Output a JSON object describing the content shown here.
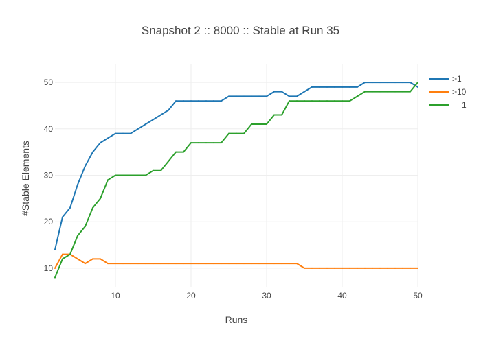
{
  "chart_data": {
    "type": "line",
    "title": "Snapshot 2 :: 8000 :: Stable at Run 35",
    "xlabel": "Runs",
    "ylabel": "#Stable Elements",
    "xlim": [
      2,
      50
    ],
    "ylim": [
      6,
      54
    ],
    "x_ticks": [
      10,
      20,
      30,
      40,
      50
    ],
    "y_ticks": [
      10,
      20,
      30,
      40,
      50
    ],
    "grid": true,
    "legend_position": "top-right",
    "x": [
      2,
      3,
      4,
      5,
      6,
      7,
      8,
      9,
      10,
      11,
      12,
      13,
      14,
      15,
      16,
      17,
      18,
      19,
      20,
      21,
      22,
      23,
      24,
      25,
      26,
      27,
      28,
      29,
      30,
      31,
      32,
      33,
      34,
      35,
      36,
      37,
      38,
      39,
      40,
      41,
      42,
      43,
      44,
      45,
      46,
      47,
      48,
      49,
      50
    ],
    "series": [
      {
        "name": ">1",
        "color": "#1f77b4",
        "values": [
          14,
          21,
          23,
          28,
          32,
          35,
          37,
          38,
          39,
          39,
          39,
          40,
          41,
          42,
          43,
          44,
          46,
          46,
          46,
          46,
          46,
          46,
          46,
          47,
          47,
          47,
          47,
          47,
          47,
          48,
          48,
          47,
          47,
          48,
          49,
          49,
          49,
          49,
          49,
          49,
          49,
          50,
          50,
          50,
          50,
          50,
          50,
          50,
          49
        ]
      },
      {
        "name": ">10",
        "color": "#ff7f0e",
        "values": [
          10,
          13,
          13,
          12,
          11,
          12,
          12,
          11,
          11,
          11,
          11,
          11,
          11,
          11,
          11,
          11,
          11,
          11,
          11,
          11,
          11,
          11,
          11,
          11,
          11,
          11,
          11,
          11,
          11,
          11,
          11,
          11,
          11,
          10,
          10,
          10,
          10,
          10,
          10,
          10,
          10,
          10,
          10,
          10,
          10,
          10,
          10,
          10,
          10
        ]
      },
      {
        "name": "==1",
        "color": "#2ca02c",
        "values": [
          8,
          12,
          13,
          17,
          19,
          23,
          25,
          29,
          30,
          30,
          30,
          30,
          30,
          31,
          31,
          33,
          35,
          35,
          37,
          37,
          37,
          37,
          37,
          39,
          39,
          39,
          41,
          41,
          41,
          43,
          43,
          46,
          46,
          46,
          46,
          46,
          46,
          46,
          46,
          46,
          47,
          48,
          48,
          48,
          48,
          48,
          48,
          48,
          50
        ]
      }
    ]
  }
}
